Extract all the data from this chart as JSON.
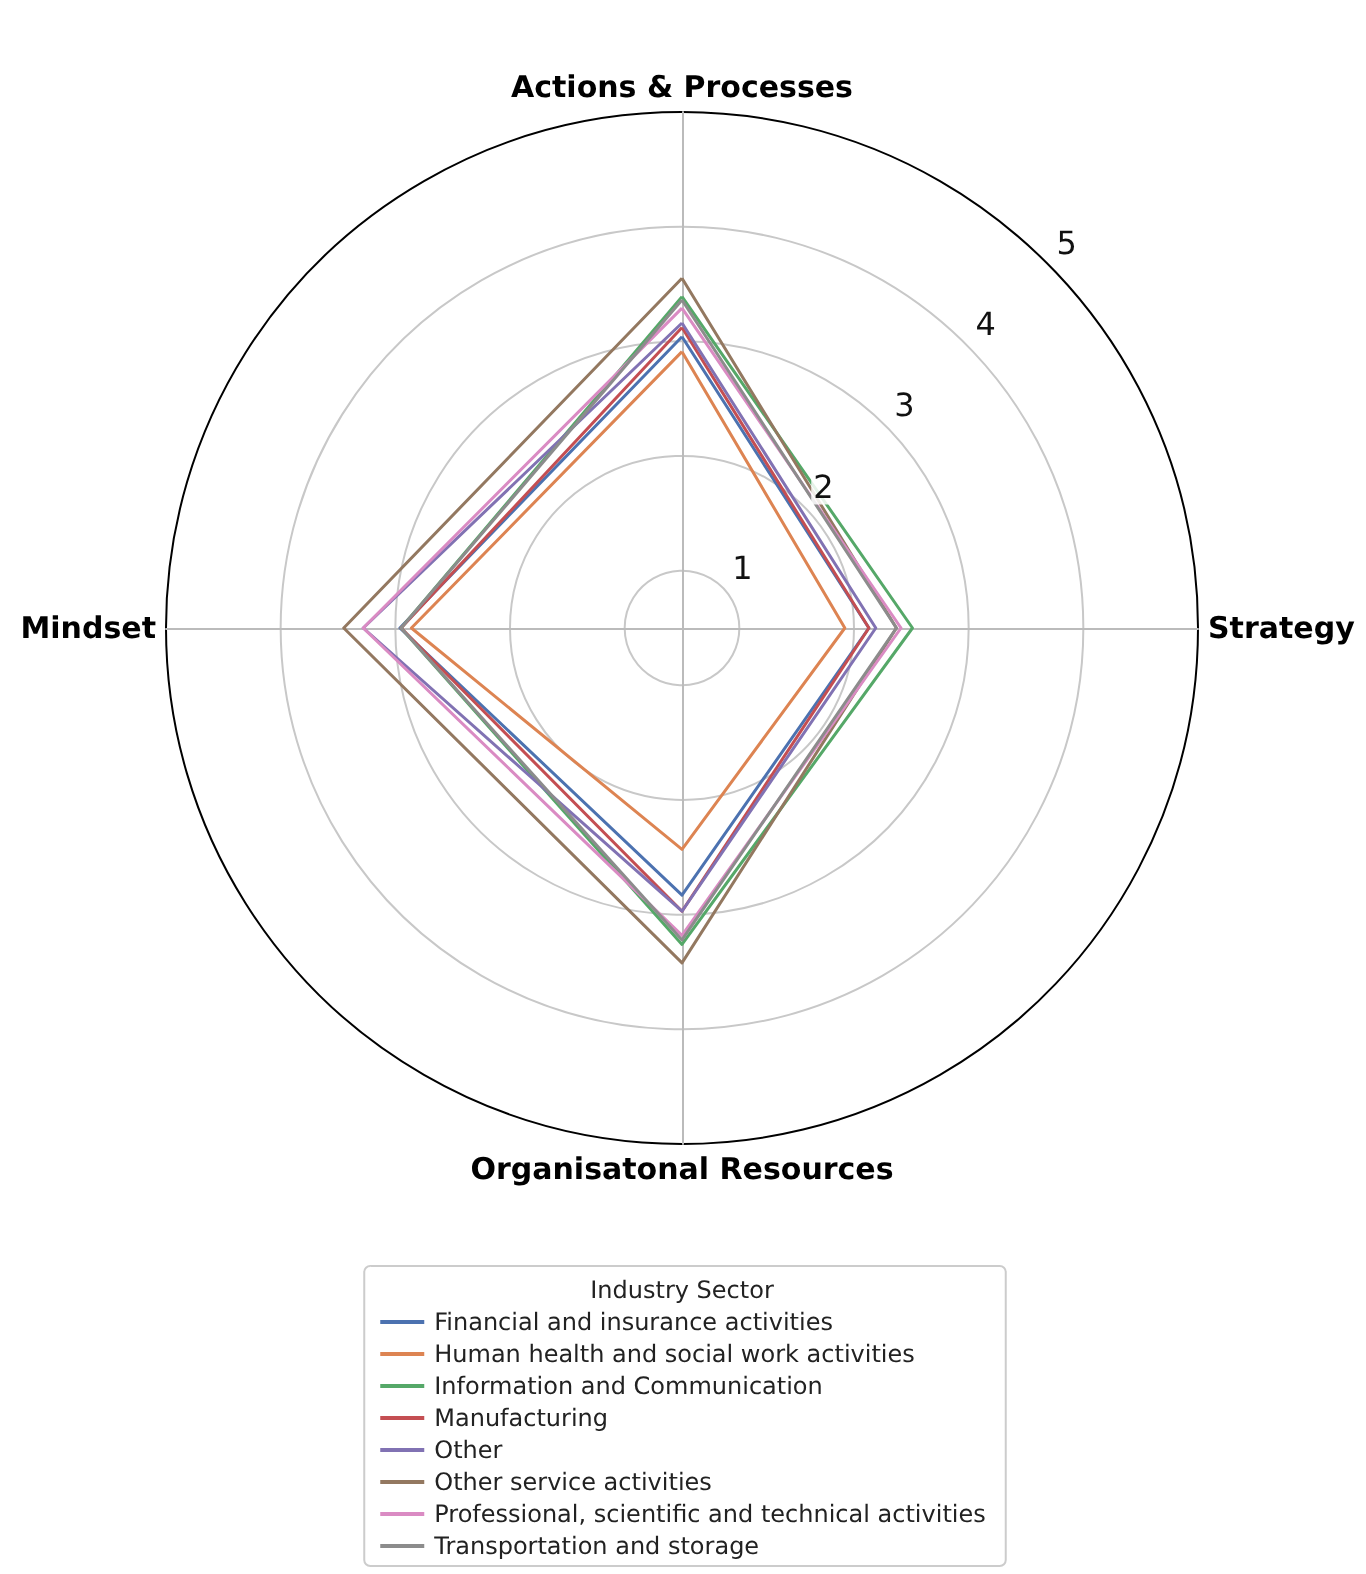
{
  "chart_data": {
    "type": "radar",
    "categories": [
      "Actions & Processes",
      "Strategy",
      "Organisatonal Resources",
      "Mindset"
    ],
    "ylim": [
      0.5,
      5
    ],
    "yticks": [
      1,
      2,
      3,
      4,
      5
    ],
    "grid": true,
    "legend": "bottom",
    "legend_title": "Industry Sector",
    "marker": "none",
    "line_style": "solid",
    "series": [
      {
        "name": "Financial and insurance activities",
        "color": "#4c72b0",
        "values": [
          3.04,
          2.13,
          2.83,
          2.96
        ]
      },
      {
        "name": "Human health and social work activities",
        "color": "#dd8452",
        "values": [
          2.91,
          1.92,
          2.43,
          2.86
        ]
      },
      {
        "name": "Information and Communication",
        "color": "#55a868",
        "values": [
          3.39,
          2.51,
          3.26,
          2.95
        ]
      },
      {
        "name": "Manufacturing",
        "color": "#c44e52",
        "values": [
          3.12,
          2.13,
          2.97,
          2.95
        ]
      },
      {
        "name": "Other",
        "color": "#8172b3",
        "values": [
          3.16,
          2.19,
          2.97,
          3.28
        ]
      },
      {
        "name": "Other service activities",
        "color": "#937860",
        "values": [
          3.55,
          2.37,
          3.42,
          3.45
        ]
      },
      {
        "name": "Professional, scientific and technical activities",
        "color": "#da8bc3",
        "values": [
          3.29,
          2.41,
          3.18,
          3.28
        ]
      },
      {
        "name": "Transportation and storage",
        "color": "#8c8c8c",
        "values": [
          3.36,
          2.37,
          3.22,
          2.95
        ]
      }
    ]
  }
}
